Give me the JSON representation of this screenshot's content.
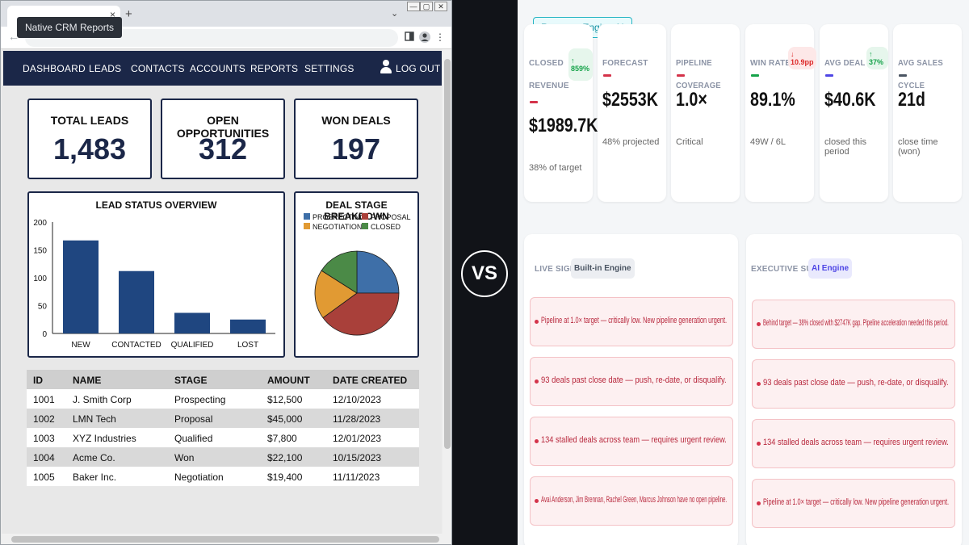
{
  "browser": {
    "tooltip": "Native CRM Reports",
    "tab_close_icon": "close-icon",
    "new_tab_glyph": "+",
    "close_glyph": "×",
    "dropdown_glyph": "⌄",
    "win_min": "—",
    "win_max": "▢",
    "win_close": "✕",
    "back_glyph": "←",
    "more_glyph": "⋮"
  },
  "crm": {
    "nav": [
      "DASHBOARD",
      "LEADS",
      "CONTACTS",
      "ACCOUNTS",
      "REPORTS",
      "SETTINGS"
    ],
    "logout": "LOG OUT",
    "kpis": [
      {
        "label": "TOTAL LEADS",
        "value": "1,483"
      },
      {
        "label": "OPEN OPPORTUNITIES",
        "value": "312"
      },
      {
        "label": "WON DEALS",
        "value": "197"
      }
    ],
    "lead_status_title": "LEAD STATUS OVERVIEW",
    "deal_stage_title": "DEAL STAGE BREAKDOWN",
    "table": {
      "headers": [
        "ID",
        "NAME",
        "STAGE",
        "AMOUNT",
        "DATE CREATED"
      ],
      "rows": [
        [
          "1001",
          "J. Smith Corp",
          "Prospecting",
          "$12,500",
          "12/10/2023"
        ],
        [
          "1002",
          "LMN Tech",
          "Proposal",
          "$45,000",
          "11/28/2023"
        ],
        [
          "1003",
          "XYZ Industries",
          "Qualified",
          "$7,800",
          "12/01/2023"
        ],
        [
          "1004",
          "Acme Co.",
          "Won",
          "$22,100",
          "10/15/2023"
        ],
        [
          "1005",
          "Baker Inc.",
          "Negotiation",
          "$19,400",
          "11/11/2023"
        ]
      ]
    }
  },
  "chart_data": [
    {
      "type": "bar",
      "title": "LEAD STATUS OVERVIEW",
      "categories": [
        "NEW",
        "CONTACTED",
        "QUALIFIED",
        "LOST"
      ],
      "values": [
        167,
        112,
        37,
        25
      ],
      "yticks": [
        "200",
        "150",
        "100",
        "50",
        "0"
      ],
      "ylim": [
        0,
        200
      ],
      "color": "#1f4680"
    },
    {
      "type": "pie",
      "title": "DEAL STAGE BREAKDOWN",
      "legend": [
        "PROSPECTING",
        "PROPOSAL",
        "NEGOTIATION",
        "CLOSED"
      ],
      "slices": [
        {
          "label": "PROSPECTING",
          "value": 25,
          "color": "#3e6fa8"
        },
        {
          "label": "PROPOSAL",
          "value": 40,
          "color": "#a9403a"
        },
        {
          "label": "NEGOTIATION",
          "value": 19,
          "color": "#e19a33"
        },
        {
          "label": "CLOSED",
          "value": 16,
          "color": "#4b8a47"
        }
      ]
    }
  ],
  "vs_label": "VS",
  "engine": {
    "badge": "Revenue Engine AI",
    "metrics": [
      {
        "label_lines": [
          "CLOSED",
          "REVENUE"
        ],
        "value": "$1989.7K",
        "sub": "38% of target",
        "trend": "↑ 859%",
        "trend_color": "#16a34a",
        "dash_color": "#d4334a"
      },
      {
        "label_lines": [
          "FORECAST"
        ],
        "value": "$2553K",
        "sub": "48% projected",
        "trend": "",
        "trend_color": "",
        "dash_color": "#d4334a"
      },
      {
        "label_lines": [
          "PIPELINE COVERAGE"
        ],
        "value": "1.0×",
        "sub": "Critical",
        "trend": "",
        "trend_color": "",
        "dash_color": "#d4334a"
      },
      {
        "label_lines": [
          "WIN RATE"
        ],
        "value": "89.1%",
        "sub": "49W / 6L",
        "trend": "↓ 10.9pp",
        "trend_color": "#dc2626",
        "dash_color": "#16a34a"
      },
      {
        "label_lines": [
          "AVG DEAL SIZE"
        ],
        "value": "$40.6K",
        "sub": "closed this period",
        "trend": "↑ 37%",
        "trend_color": "#16a34a",
        "dash_color": "#4f46e5"
      },
      {
        "label_lines": [
          "AVG SALES CYCLE"
        ],
        "value": "21d",
        "sub": "close time (won)",
        "trend": "",
        "trend_color": "",
        "dash_color": "#4b5563"
      }
    ],
    "live_signals": {
      "title": "LIVE SIGNALS",
      "tag": "Built-in Engine",
      "alerts": [
        "Pipeline at 1.0× target — critically low. New pipeline generation urgent.",
        "93 deals past close date — push, re-date, or disqualify.",
        "134 stalled deals across team — requires urgent review.",
        "Avai Anderson, Jim Brennan, Rachel Green, Marcus Johnson have no open pipeline."
      ]
    },
    "executive_summary": {
      "title": "EXECUTIVE SUMMARY",
      "tag": "AI Engine",
      "alerts": [
        "Behind target — 38% closed with $2747K gap. Pipeline acceleration needed this period.",
        "93 deals past close date — push, re-date, or disqualify.",
        "134 stalled deals across team — requires urgent review.",
        "Pipeline at 1.0× target — critically low. New pipeline generation urgent."
      ]
    }
  }
}
